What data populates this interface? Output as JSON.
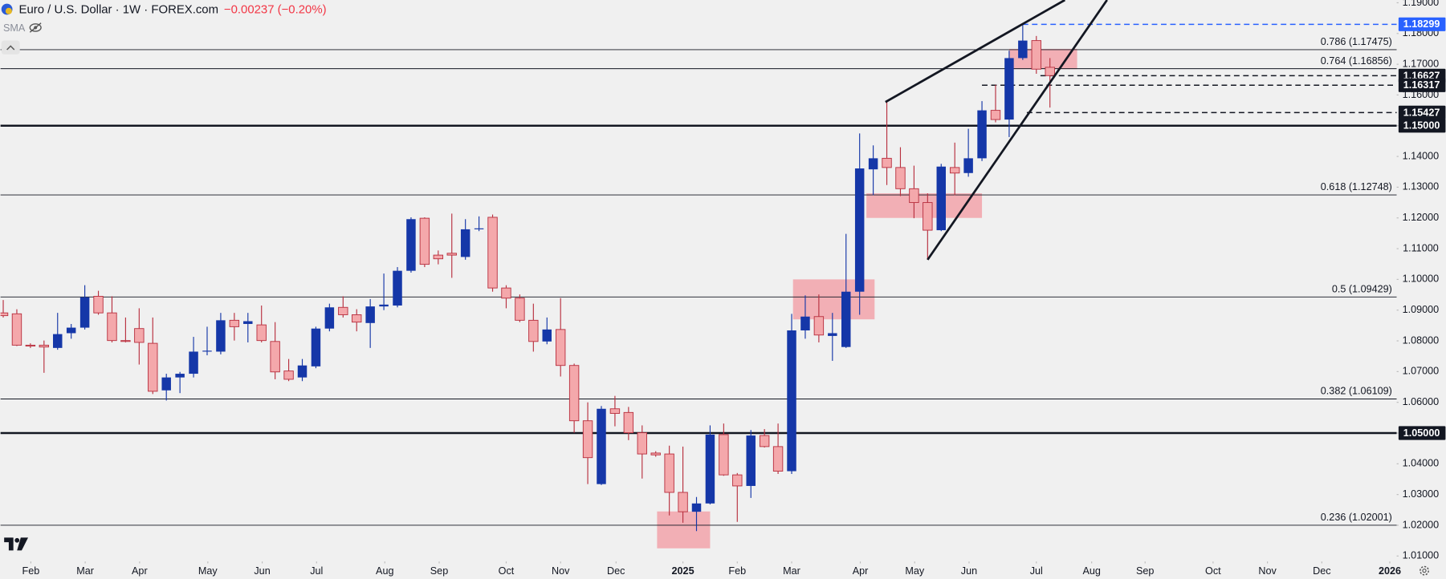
{
  "chart_data": {
    "type": "candlestick",
    "title": "Euro / U.S. Dollar · 1W · FOREX.com",
    "change": "−0.00237 (−0.20%)",
    "indicator": "SMA",
    "up_color": "#1537a8",
    "down_color": "#f4a8ab",
    "down_edge_color": "#b8303f",
    "zone_color": "#f2a3aa",
    "line_color": "#131722",
    "x": [
      0,
      1,
      2,
      3,
      4,
      5,
      6,
      7,
      8,
      9,
      10,
      11,
      12,
      13,
      14,
      15,
      16,
      17,
      18,
      19,
      20,
      21,
      22,
      23,
      24,
      25,
      26,
      27,
      28,
      29,
      30,
      31,
      32,
      33,
      34,
      35,
      36,
      37,
      38,
      39,
      40,
      41,
      42,
      43,
      44,
      45,
      46,
      47,
      48,
      49,
      50,
      51,
      52,
      53,
      54,
      55,
      56,
      57,
      58,
      59,
      60,
      61,
      62,
      63,
      64,
      65,
      66,
      67,
      68,
      69,
      70,
      71,
      72,
      73,
      74,
      75,
      76,
      77
    ],
    "open": [
      1.0891,
      1.0888,
      1.0786,
      1.0786,
      1.0777,
      1.0825,
      1.0843,
      1.0945,
      1.0891,
      1.0801,
      1.084,
      1.0792,
      1.0639,
      1.0681,
      1.0693,
      1.0765,
      1.0765,
      1.0867,
      1.0855,
      1.0852,
      1.0798,
      1.0702,
      1.0681,
      1.0717,
      1.084,
      1.0909,
      1.0885,
      1.0858,
      1.0912,
      1.0915,
      1.1028,
      1.1199,
      1.1079,
      1.1085,
      1.1073,
      1.1163,
      1.1202,
      1.0972,
      1.0939,
      1.0867,
      1.0798,
      1.0837,
      1.072,
      1.054,
      1.0334,
      1.0579,
      1.0567,
      1.0501,
      1.0435,
      1.0432,
      1.0307,
      1.0244,
      1.0271,
      1.0495,
      1.0364,
      1.0328,
      1.0492,
      1.0456,
      1.0376,
      1.0834,
      1.0879,
      1.0816,
      1.078,
      1.096,
      1.1358,
      1.1394,
      1.1364,
      1.1295,
      1.125,
      1.116,
      1.1364,
      1.1346,
      1.1394,
      1.155,
      1.152,
      1.172,
      1.1777,
      1.169
    ],
    "high": [
      1.0933,
      1.0903,
      1.0792,
      1.0801,
      1.0891,
      1.0855,
      1.0981,
      1.0963,
      1.0945,
      1.0876,
      1.0906,
      1.0876,
      1.0693,
      1.0699,
      1.0813,
      1.0846,
      1.0891,
      1.0891,
      1.0891,
      1.0915,
      1.0861,
      1.0741,
      1.0741,
      1.0846,
      1.0921,
      1.0945,
      1.0903,
      1.0936,
      1.1019,
      1.104,
      1.1202,
      1.1202,
      1.1094,
      1.1214,
      1.1196,
      1.1205,
      1.1211,
      1.0981,
      1.0951,
      1.0921,
      1.0876,
      1.0939,
      1.0726,
      1.06,
      1.0588,
      1.0621,
      1.0585,
      1.0525,
      1.0441,
      1.0459,
      1.0456,
      1.0292,
      1.0525,
      1.0531,
      1.037,
      1.051,
      1.0513,
      1.0531,
      1.0888,
      1.0948,
      1.0951,
      1.0891,
      1.1148,
      1.1475,
      1.1436,
      1.1577,
      1.143,
      1.137,
      1.128,
      1.1376,
      1.1445,
      1.149,
      1.158,
      1.1633,
      1.1744,
      1.183,
      1.1792,
      1.172
    ],
    "low": [
      1.0876,
      1.0783,
      1.0777,
      1.0696,
      1.0771,
      1.0807,
      1.0837,
      1.0885,
      1.0795,
      1.0795,
      1.0723,
      1.0627,
      1.0606,
      1.063,
      1.0681,
      1.0753,
      1.0756,
      1.0801,
      1.0795,
      1.0795,
      1.0675,
      1.0669,
      1.0669,
      1.0711,
      1.0831,
      1.0876,
      1.0831,
      1.0777,
      1.09,
      1.0909,
      1.1022,
      1.104,
      1.1049,
      1.1005,
      1.1064,
      1.1157,
      1.096,
      1.0906,
      1.0861,
      1.0765,
      1.0789,
      1.0684,
      1.0501,
      1.0334,
      1.0331,
      1.0522,
      1.0477,
      1.0352,
      1.0423,
      1.0232,
      1.0208,
      1.0181,
      1.0268,
      1.0361,
      1.0211,
      1.0289,
      1.0453,
      1.0367,
      1.0367,
      1.0807,
      1.0795,
      1.0735,
      1.0777,
      1.0885,
      1.1274,
      1.1307,
      1.1271,
      1.1199,
      1.1064,
      1.1157,
      1.1274,
      1.1334,
      1.1385,
      1.1511,
      1.1463,
      1.1714,
      1.1669,
      1.1559
    ],
    "close": [
      1.0882,
      1.0786,
      1.0783,
      1.078,
      1.0822,
      1.0843,
      1.0942,
      1.0891,
      1.0801,
      1.0798,
      1.0795,
      1.0636,
      1.0681,
      1.0693,
      1.0765,
      1.0768,
      1.0867,
      1.0846,
      1.0864,
      1.0801,
      1.0699,
      1.0675,
      1.072,
      1.084,
      1.0909,
      1.0885,
      1.0861,
      1.0912,
      1.0918,
      1.1028,
      1.1196,
      1.1049,
      1.1067,
      1.1079,
      1.1163,
      1.1166,
      1.0972,
      1.0939,
      1.0867,
      1.0798,
      1.0837,
      1.072,
      1.054,
      1.042,
      1.0579,
      1.0564,
      1.0501,
      1.0432,
      1.0429,
      1.0307,
      1.0244,
      1.0271,
      1.0495,
      1.0364,
      1.0328,
      1.0492,
      1.0456,
      1.0376,
      1.0834,
      1.0879,
      1.0819,
      1.0825,
      1.096,
      1.1361,
      1.1394,
      1.1364,
      1.1295,
      1.125,
      1.116,
      1.1367,
      1.1346,
      1.1394,
      1.155,
      1.152,
      1.172,
      1.1777,
      1.1684,
      1.1663
    ],
    "xlim": [
      -0.2034,
      102.508
    ],
    "ylim": [
      1.00821,
      1.1909
    ],
    "xticks": [
      {
        "value": 2.03,
        "label": "Feb"
      },
      {
        "value": 6.03,
        "label": "Mar"
      },
      {
        "value": 10.03,
        "label": "Apr"
      },
      {
        "value": 15.05,
        "label": "May"
      },
      {
        "value": 19.05,
        "label": "Jun"
      },
      {
        "value": 23.05,
        "label": "Jul"
      },
      {
        "value": 28.07,
        "label": "Aug"
      },
      {
        "value": 32.07,
        "label": "Sep"
      },
      {
        "value": 37.0,
        "label": "Oct"
      },
      {
        "value": 41.0,
        "label": "Nov"
      },
      {
        "value": 45.08,
        "label": "Dec"
      },
      {
        "value": 50.0,
        "label": "2025"
      },
      {
        "value": 54.0,
        "label": "Feb"
      },
      {
        "value": 58.0,
        "label": "Mar"
      },
      {
        "value": 63.05,
        "label": "Apr"
      },
      {
        "value": 67.05,
        "label": "May"
      },
      {
        "value": 71.05,
        "label": "Jun"
      },
      {
        "value": 76.0,
        "label": "Jul"
      },
      {
        "value": 80.07,
        "label": "Aug"
      },
      {
        "value": 84.0,
        "label": "Sep"
      },
      {
        "value": 89.0,
        "label": "Oct"
      },
      {
        "value": 93.0,
        "label": "Nov"
      },
      {
        "value": 97.0,
        "label": "Dec"
      },
      {
        "value": 102.0,
        "label": "2026"
      }
    ],
    "yticks": [
      {
        "value": 1.19,
        "label": "1.19000"
      },
      {
        "value": 1.18,
        "label": "1.18000"
      },
      {
        "value": 1.17,
        "label": "1.17000"
      },
      {
        "value": 1.16,
        "label": "1.16000"
      },
      {
        "value": 1.15,
        "label": "1.15000"
      },
      {
        "value": 1.14,
        "label": "1.14000"
      },
      {
        "value": 1.13,
        "label": "1.13000"
      },
      {
        "value": 1.12,
        "label": "1.12000"
      },
      {
        "value": 1.11,
        "label": "1.11000"
      },
      {
        "value": 1.1,
        "label": "1.10000"
      },
      {
        "value": 1.09,
        "label": "1.09000"
      },
      {
        "value": 1.08,
        "label": "1.08000"
      },
      {
        "value": 1.07,
        "label": "1.07000"
      },
      {
        "value": 1.06,
        "label": "1.06000"
      },
      {
        "value": 1.05,
        "label": "1.05000"
      },
      {
        "value": 1.04,
        "label": "1.04000"
      },
      {
        "value": 1.03,
        "label": "1.03000"
      },
      {
        "value": 1.02,
        "label": "1.02000"
      },
      {
        "value": 1.01,
        "label": "1.01000"
      }
    ],
    "levels": [
      {
        "value": 1.17475,
        "label": "0.786 (1.17475)"
      },
      {
        "value": 1.16856,
        "label": "0.764 (1.16856)"
      },
      {
        "value": 1.12748,
        "label": "0.618 (1.12748)"
      },
      {
        "value": 1.09429,
        "label": "0.5 (1.09429)"
      },
      {
        "value": 1.06109,
        "label": "0.382 (1.06109)"
      },
      {
        "value": 1.02001,
        "label": "0.236 (1.02001)"
      }
    ],
    "hlines": [
      {
        "value": 1.15,
        "style": "bold"
      },
      {
        "value": 1.05,
        "style": "bold"
      }
    ],
    "dashed": [
      {
        "value": 1.18299,
        "from": 75.0,
        "color": "#2962ff"
      },
      {
        "value": 1.16627,
        "from": 76.3,
        "color": "#131722"
      },
      {
        "value": 1.16317,
        "from": 72.0,
        "color": "#131722"
      },
      {
        "value": 1.15427,
        "from": 75.3,
        "color": "#131722"
      }
    ],
    "price_labels": [
      {
        "value": 1.18299,
        "label": "1.18299",
        "color": "#2962ff"
      },
      {
        "value": 1.16627,
        "label": "1.16627",
        "color": "#131722"
      },
      {
        "value": 1.16317,
        "label": "1.16317",
        "color": "#131722"
      },
      {
        "value": 1.15427,
        "label": "1.15427",
        "color": "#131722"
      },
      {
        "value": 1.15,
        "label": "1.15000",
        "color": "#131722"
      },
      {
        "value": 1.05,
        "label": "1.05000",
        "color": "#131722"
      }
    ],
    "zones": [
      {
        "x": [
          74.0,
          79.0
        ],
        "y": [
          1.1684,
          1.175
        ]
      },
      {
        "x": [
          63.5,
          72.0
        ],
        "y": [
          1.12,
          1.128
        ]
      },
      {
        "x": [
          58.1,
          64.1
        ],
        "y": [
          1.087,
          1.1
        ]
      },
      {
        "x": [
          48.1,
          52.0
        ],
        "y": [
          1.0125,
          1.0245
        ]
      }
    ],
    "trendlines": [
      {
        "x": [
          64.9,
          78.1
        ],
        "y": [
          1.1577,
          1.1909
        ]
      },
      {
        "x": [
          68.0,
          81.2
        ],
        "y": [
          1.1064,
          1.1909
        ]
      }
    ]
  }
}
